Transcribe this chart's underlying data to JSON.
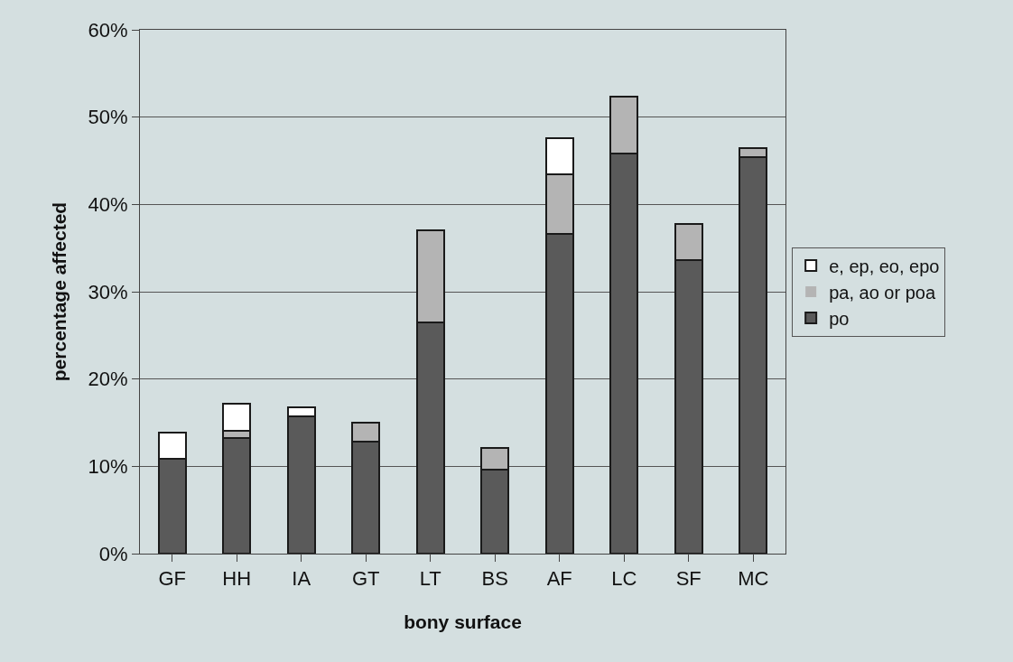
{
  "chart_data": {
    "type": "bar",
    "stacked": true,
    "xlabel": "bony surface",
    "ylabel": "percentage affected",
    "categories": [
      "GF",
      "HH",
      "IA",
      "GT",
      "LT",
      "BS",
      "AF",
      "LC",
      "SF",
      "MC"
    ],
    "series": [
      {
        "name": "po",
        "color": "#5a5a5a",
        "values": [
          10.9,
          13.2,
          15.7,
          12.8,
          26.5,
          9.6,
          36.6,
          45.8,
          33.6,
          45.4
        ]
      },
      {
        "name": "pa, ao or poa",
        "color": "#b4b4b4",
        "values": [
          0,
          0.9,
          0,
          2.2,
          10.5,
          2.5,
          6.8,
          6.5,
          4.2,
          1.0
        ]
      },
      {
        "name": "e, ep, eo, epo",
        "color": "#ffffff",
        "values": [
          3.0,
          3.1,
          1.1,
          0,
          0,
          0,
          4.2,
          0,
          0,
          0
        ]
      }
    ],
    "ylim": [
      0,
      60
    ],
    "yticks": [
      {
        "value": 0,
        "label": "0%"
      },
      {
        "value": 10,
        "label": "10%"
      },
      {
        "value": 20,
        "label": "20%"
      },
      {
        "value": 30,
        "label": "30%"
      },
      {
        "value": 40,
        "label": "40%"
      },
      {
        "value": 50,
        "label": "50%"
      },
      {
        "value": 60,
        "label": "60%"
      }
    ],
    "grid": "y",
    "legend": "right"
  }
}
